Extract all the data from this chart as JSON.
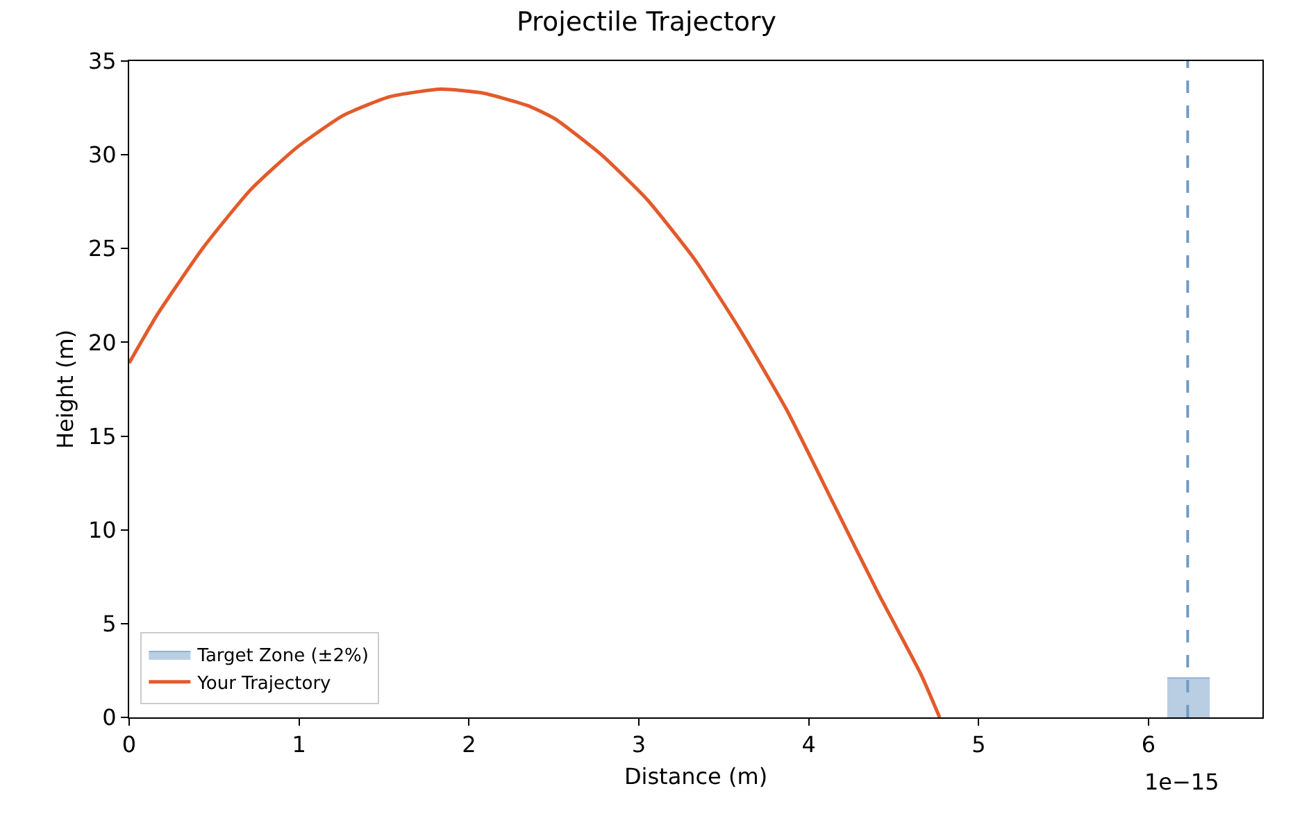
{
  "chart_data": {
    "type": "line",
    "title": "Projectile Trajectory",
    "xlabel": "Distance (m)",
    "ylabel": "Height (m)",
    "annotations": [
      "1e−15"
    ],
    "xlim": [
      0,
      6.67
    ],
    "xticks": [
      0,
      1,
      2,
      3,
      4,
      5,
      6
    ],
    "ylim": [
      0,
      35
    ],
    "yticks": [
      0,
      5,
      10,
      15,
      20,
      25,
      30,
      35
    ],
    "legend": "bottom left",
    "marker": "none",
    "series": [
      {
        "name": "Target Zone (±2%)",
        "type": "area",
        "color": "#b9cee2",
        "x": [
          6.11,
          6.36
        ],
        "values": [
          2.1,
          2.1
        ]
      },
      {
        "name": "Your Trajectory",
        "color": "#e35a2a",
        "line_style": "solid",
        "x": [
          0,
          0.167,
          0.44,
          0.716,
          0.988,
          1.26,
          1.533,
          1.834,
          2.08,
          2.353,
          2.51,
          2.78,
          3.05,
          3.33,
          3.6,
          3.87,
          4.14,
          4.41,
          4.66,
          4.77
        ],
        "values": [
          18.9,
          21.5,
          25.1,
          28.15,
          30.4,
          32.1,
          33.1,
          33.5,
          33.3,
          32.6,
          31.9,
          30.0,
          27.6,
          24.4,
          20.6,
          16.4,
          11.5,
          6.6,
          2.3,
          0
        ]
      }
    ],
    "ref_lines": [
      {
        "axis": "x",
        "value": 6.23,
        "color": "#6f9bc6",
        "line_style": "dashed"
      }
    ]
  }
}
